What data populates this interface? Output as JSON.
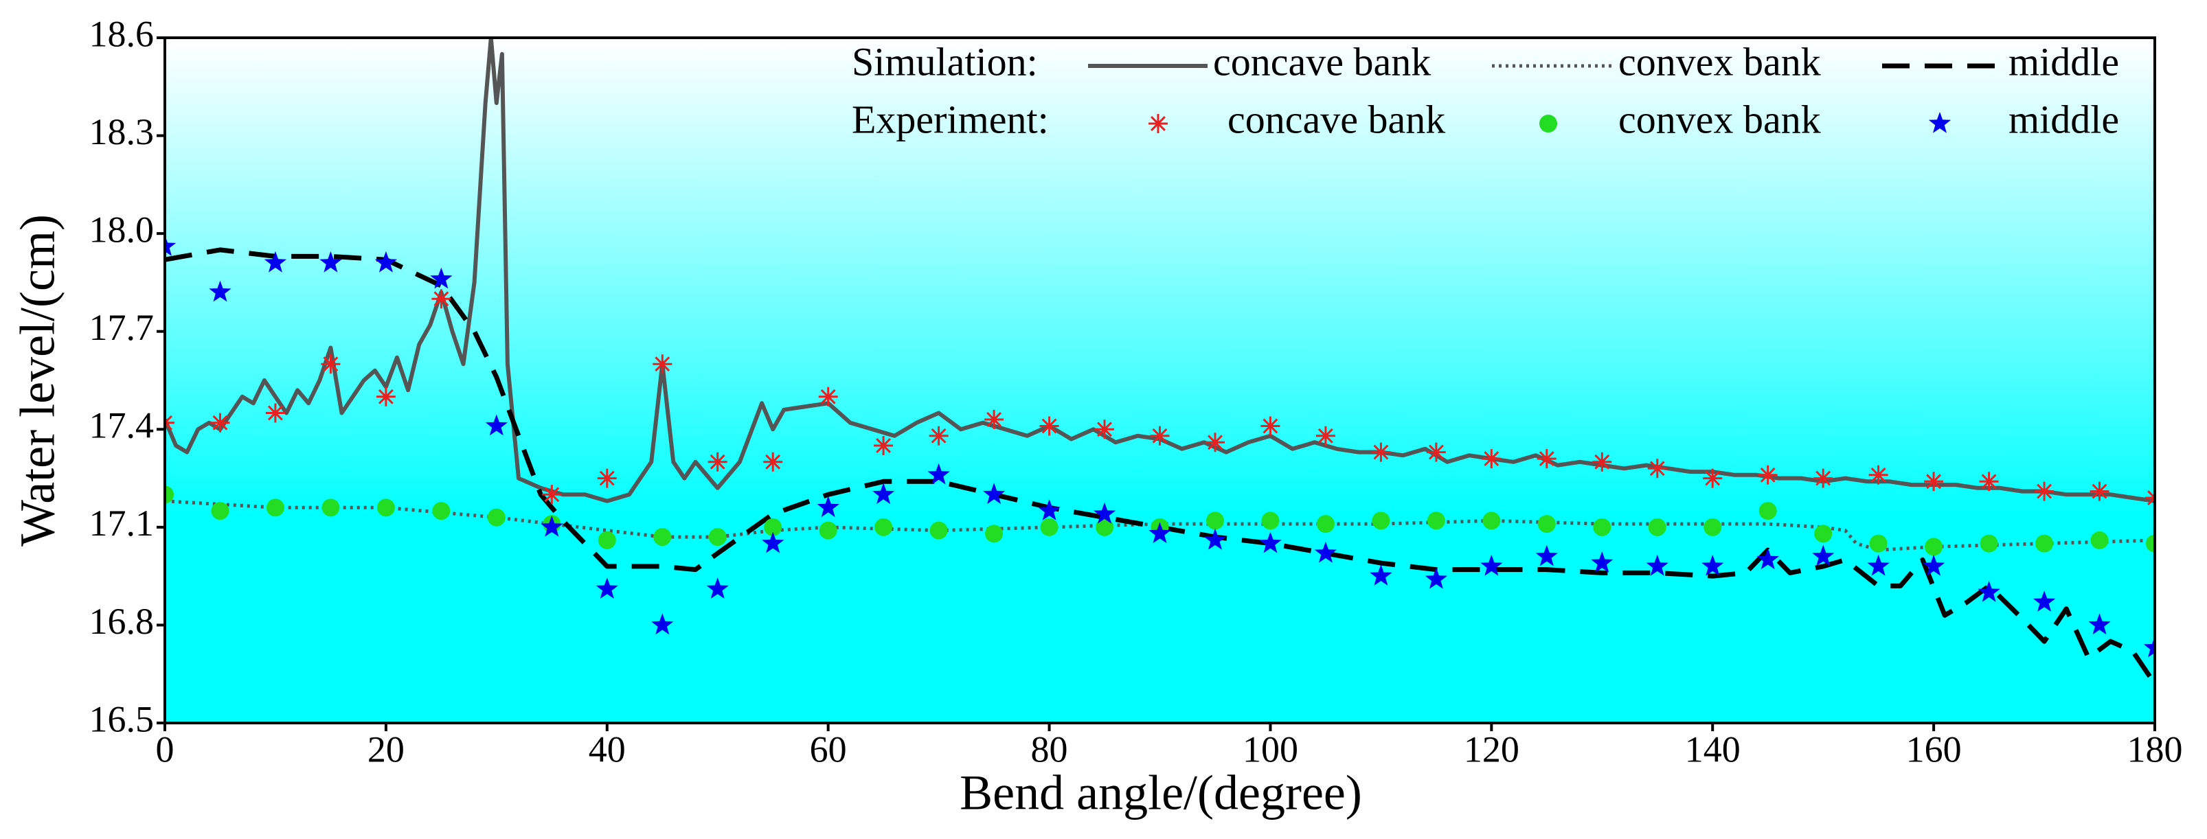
{
  "chart_data": {
    "type": "line",
    "xlabel": "Bend angle/(degree)",
    "ylabel": "Water level/(cm)",
    "xlim": [
      0,
      180
    ],
    "xticks": [
      0,
      20,
      40,
      60,
      80,
      100,
      120,
      140,
      160,
      180
    ],
    "ylim": [
      16.5,
      18.6
    ],
    "yticks": [
      16.5,
      16.8,
      17.1,
      17.4,
      17.7,
      {
        "value": 18,
        "label": "18.0"
      },
      18.3,
      18.6
    ],
    "legend_groups": [
      "Simulation:",
      "Experiment:"
    ],
    "series": [
      {
        "name": "concave bank",
        "kind": "line",
        "style": "solid",
        "color": "#555555",
        "x": [
          0,
          1,
          2,
          3,
          4,
          5,
          6,
          7,
          8,
          9,
          10,
          11,
          12,
          13,
          14,
          15,
          16,
          17,
          18,
          19,
          20,
          21,
          22,
          23,
          24,
          25,
          26,
          27,
          28,
          29,
          29.5,
          30,
          30.5,
          31,
          32,
          34,
          36,
          38,
          40,
          42,
          44,
          45,
          46,
          47,
          48,
          50,
          52,
          54,
          55,
          56,
          58,
          60,
          62,
          64,
          66,
          68,
          70,
          72,
          74,
          76,
          78,
          80,
          82,
          84,
          86,
          88,
          90,
          92,
          94,
          96,
          98,
          100,
          102,
          104,
          106,
          108,
          110,
          112,
          114,
          116,
          118,
          120,
          122,
          124,
          126,
          128,
          130,
          132,
          134,
          136,
          138,
          140,
          142,
          144,
          146,
          148,
          150,
          152,
          154,
          156,
          158,
          160,
          162,
          164,
          166,
          168,
          170,
          172,
          174,
          176,
          178,
          180
        ],
        "values": [
          17.43,
          17.35,
          17.33,
          17.4,
          17.42,
          17.4,
          17.45,
          17.5,
          17.48,
          17.55,
          17.5,
          17.45,
          17.52,
          17.48,
          17.55,
          17.65,
          17.45,
          17.5,
          17.55,
          17.58,
          17.53,
          17.62,
          17.52,
          17.66,
          17.72,
          17.82,
          17.7,
          17.6,
          17.85,
          18.4,
          18.6,
          18.4,
          18.55,
          17.6,
          17.25,
          17.22,
          17.2,
          17.2,
          17.18,
          17.2,
          17.3,
          17.6,
          17.3,
          17.25,
          17.3,
          17.22,
          17.3,
          17.48,
          17.4,
          17.46,
          17.47,
          17.48,
          17.42,
          17.4,
          17.38,
          17.42,
          17.45,
          17.4,
          17.42,
          17.4,
          17.38,
          17.41,
          17.37,
          17.4,
          17.36,
          17.38,
          17.37,
          17.34,
          17.36,
          17.33,
          17.36,
          17.38,
          17.34,
          17.36,
          17.34,
          17.33,
          17.33,
          17.32,
          17.34,
          17.3,
          17.32,
          17.31,
          17.3,
          17.32,
          17.29,
          17.3,
          17.29,
          17.28,
          17.29,
          17.28,
          17.27,
          17.27,
          17.26,
          17.26,
          17.25,
          17.25,
          17.24,
          17.25,
          17.24,
          17.24,
          17.23,
          17.23,
          17.23,
          17.22,
          17.22,
          17.21,
          17.21,
          17.2,
          17.2,
          17.2,
          17.19,
          17.18
        ]
      },
      {
        "name": "convex bank",
        "kind": "line",
        "style": "dotted",
        "color": "#555555",
        "x": [
          0,
          10,
          20,
          30,
          35,
          40,
          45,
          50,
          55,
          60,
          70,
          80,
          90,
          100,
          110,
          120,
          130,
          140,
          145,
          150,
          152,
          153,
          155,
          160,
          170,
          180
        ],
        "values": [
          17.18,
          17.16,
          17.16,
          17.13,
          17.11,
          17.09,
          17.07,
          17.07,
          17.09,
          17.1,
          17.09,
          17.1,
          17.11,
          17.11,
          17.11,
          17.12,
          17.11,
          17.11,
          17.11,
          17.1,
          17.09,
          17.05,
          17.03,
          17.04,
          17.05,
          17.06
        ]
      },
      {
        "name": "middle",
        "kind": "line",
        "style": "dashed",
        "color": "#000000",
        "x": [
          0,
          5,
          10,
          15,
          20,
          25,
          28,
          30,
          32,
          34,
          36,
          38,
          40,
          45,
          48,
          50,
          55,
          60,
          65,
          70,
          75,
          80,
          85,
          90,
          95,
          100,
          105,
          110,
          115,
          120,
          125,
          130,
          135,
          140,
          143,
          145,
          147,
          150,
          152,
          155,
          157,
          159,
          161,
          163,
          165,
          168,
          170,
          172,
          174,
          176,
          178,
          180
        ],
        "values": [
          17.92,
          17.95,
          17.93,
          17.93,
          17.92,
          17.84,
          17.7,
          17.56,
          17.38,
          17.2,
          17.12,
          17.05,
          16.98,
          16.98,
          16.97,
          17.02,
          17.14,
          17.2,
          17.24,
          17.24,
          17.2,
          17.16,
          17.13,
          17.1,
          17.07,
          17.05,
          17.02,
          16.99,
          16.97,
          16.97,
          16.97,
          16.96,
          16.96,
          16.95,
          16.96,
          17.03,
          16.96,
          16.98,
          17.0,
          16.92,
          16.92,
          17.0,
          16.83,
          16.87,
          16.92,
          16.82,
          16.75,
          16.85,
          16.7,
          16.75,
          16.72,
          16.62
        ]
      },
      {
        "name": "concave bank",
        "kind": "scatter",
        "style": "asterisk",
        "color": "#e82020",
        "x": [
          0,
          5,
          10,
          15,
          20,
          25,
          35,
          40,
          45,
          50,
          55,
          60,
          65,
          70,
          75,
          80,
          85,
          90,
          95,
          100,
          105,
          110,
          115,
          120,
          125,
          130,
          135,
          140,
          145,
          150,
          155,
          160,
          165,
          170,
          175,
          180
        ],
        "values": [
          17.42,
          17.42,
          17.45,
          17.6,
          17.5,
          17.8,
          17.2,
          17.25,
          17.6,
          17.3,
          17.3,
          17.5,
          17.35,
          17.38,
          17.43,
          17.41,
          17.4,
          17.38,
          17.36,
          17.41,
          17.38,
          17.33,
          17.33,
          17.31,
          17.31,
          17.3,
          17.28,
          17.25,
          17.26,
          17.25,
          17.26,
          17.24,
          17.24,
          17.21,
          17.21,
          17.19
        ]
      },
      {
        "name": "convex bank",
        "kind": "scatter",
        "style": "circle",
        "color": "#22dd22",
        "x": [
          0,
          5,
          10,
          15,
          20,
          25,
          30,
          35,
          40,
          45,
          50,
          55,
          60,
          65,
          70,
          75,
          80,
          85,
          90,
          95,
          100,
          105,
          110,
          115,
          120,
          125,
          130,
          135,
          140,
          145,
          150,
          155,
          160,
          165,
          170,
          175,
          180
        ],
        "values": [
          17.2,
          17.15,
          17.16,
          17.16,
          17.16,
          17.15,
          17.13,
          17.11,
          17.06,
          17.07,
          17.07,
          17.1,
          17.09,
          17.1,
          17.09,
          17.08,
          17.1,
          17.1,
          17.1,
          17.12,
          17.12,
          17.11,
          17.12,
          17.12,
          17.12,
          17.11,
          17.1,
          17.1,
          17.1,
          17.15,
          17.08,
          17.05,
          17.04,
          17.05,
          17.05,
          17.06,
          17.05
        ]
      },
      {
        "name": "middle",
        "kind": "scatter",
        "style": "star",
        "color": "#0000ee",
        "x": [
          0,
          5,
          10,
          15,
          20,
          25,
          30,
          35,
          40,
          45,
          50,
          55,
          60,
          65,
          70,
          75,
          80,
          85,
          90,
          95,
          100,
          105,
          110,
          115,
          120,
          125,
          130,
          135,
          140,
          145,
          150,
          155,
          160,
          165,
          170,
          175,
          180
        ],
        "values": [
          17.96,
          17.82,
          17.91,
          17.91,
          17.91,
          17.86,
          17.41,
          17.1,
          16.91,
          16.8,
          16.91,
          17.05,
          17.16,
          17.2,
          17.26,
          17.2,
          17.15,
          17.14,
          17.08,
          17.06,
          17.05,
          17.02,
          16.95,
          16.94,
          16.98,
          17.01,
          16.99,
          16.98,
          16.98,
          17.0,
          17.01,
          16.98,
          16.98,
          16.9,
          16.87,
          16.8,
          16.73
        ]
      }
    ]
  }
}
